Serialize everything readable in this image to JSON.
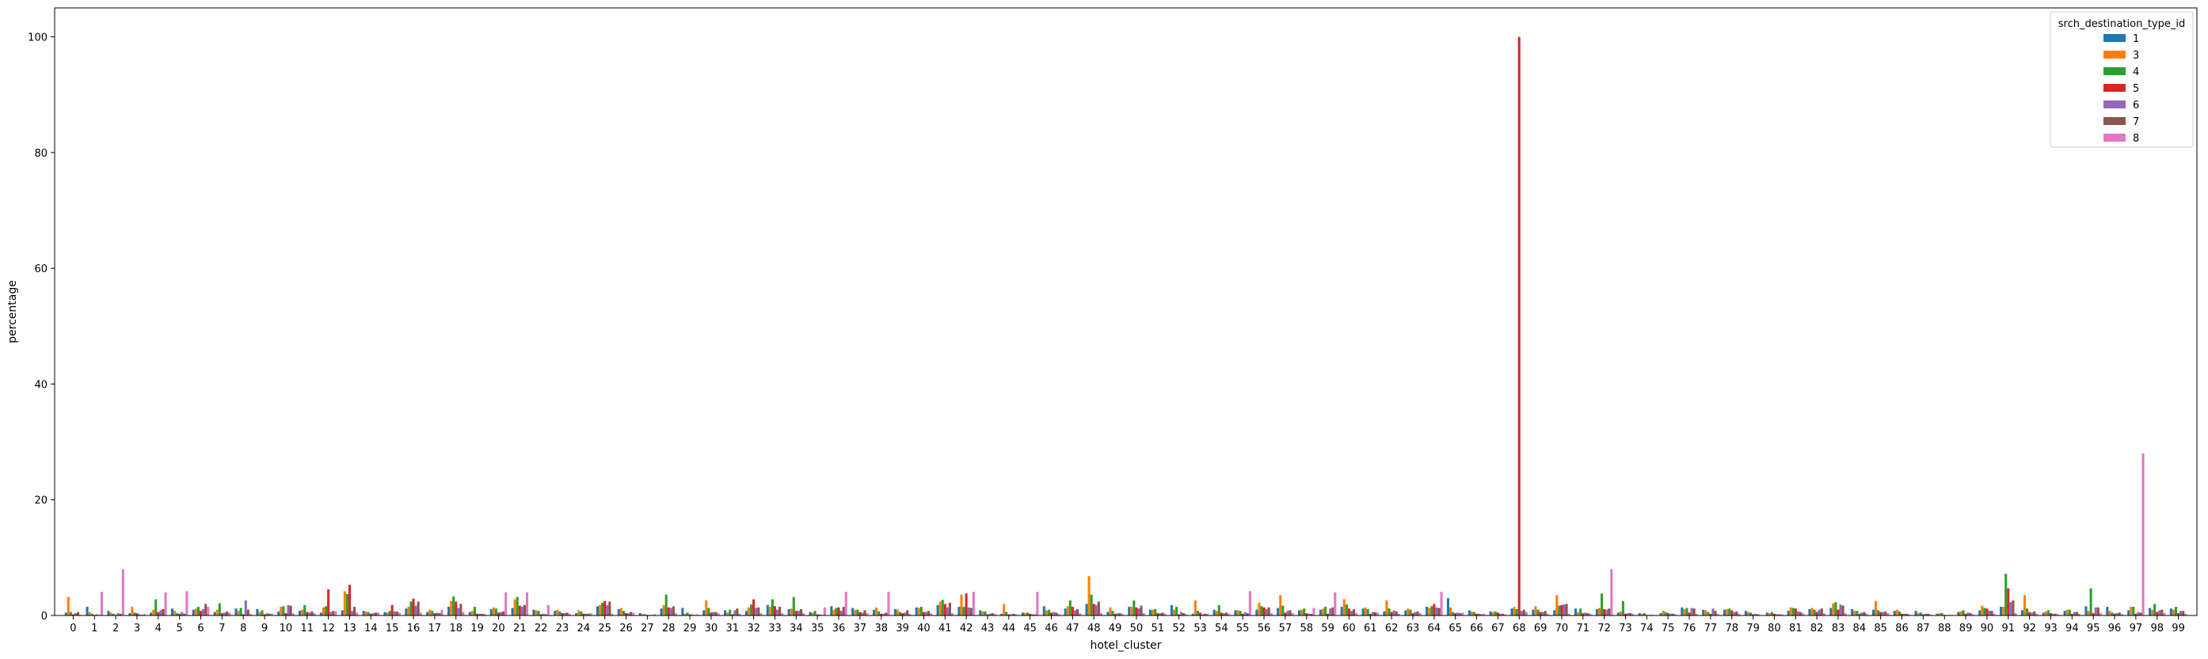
{
  "chart_data": {
    "type": "bar",
    "title": "",
    "xlabel": "hotel_cluster",
    "ylabel": "percentage",
    "ylim": [
      0,
      105
    ],
    "yticks": [
      0,
      20,
      40,
      60,
      80,
      100
    ],
    "grid": false,
    "legend": {
      "title": "srch_destination_type_id",
      "placement": "top-right"
    },
    "categories": [
      "0",
      "1",
      "2",
      "3",
      "4",
      "5",
      "6",
      "7",
      "8",
      "9",
      "10",
      "11",
      "12",
      "13",
      "14",
      "15",
      "16",
      "17",
      "18",
      "19",
      "20",
      "21",
      "22",
      "23",
      "24",
      "25",
      "26",
      "27",
      "28",
      "29",
      "30",
      "31",
      "32",
      "33",
      "34",
      "35",
      "36",
      "37",
      "38",
      "39",
      "40",
      "41",
      "42",
      "43",
      "44",
      "45",
      "46",
      "47",
      "48",
      "49",
      "50",
      "51",
      "52",
      "53",
      "54",
      "55",
      "56",
      "57",
      "58",
      "59",
      "60",
      "61",
      "62",
      "63",
      "64",
      "65",
      "66",
      "67",
      "68",
      "69",
      "70",
      "71",
      "72",
      "73",
      "74",
      "75",
      "76",
      "77",
      "78",
      "79",
      "80",
      "81",
      "82",
      "83",
      "84",
      "85",
      "86",
      "87",
      "88",
      "89",
      "90",
      "91",
      "92",
      "93",
      "94",
      "95",
      "96",
      "97",
      "98",
      "99"
    ],
    "series": [
      {
        "name": "1",
        "color": "#1f77b4",
        "values": [
          0.5,
          1.5,
          0.8,
          0.4,
          0.5,
          1.2,
          1.0,
          0.6,
          1.2,
          1.1,
          0.7,
          0.8,
          0.5,
          0.9,
          0.8,
          0.6,
          1.2,
          0.6,
          1.5,
          0.6,
          1.1,
          1.3,
          1.0,
          0.8,
          0.4,
          1.6,
          1.1,
          0.4,
          1.2,
          1.3,
          0.9,
          0.9,
          0.8,
          1.8,
          1.1,
          0.6,
          1.6,
          1.3,
          1.0,
          1.1,
          1.4,
          1.8,
          1.5,
          0.9,
          0.3,
          0.5,
          1.6,
          1.2,
          2.0,
          0.6,
          1.5,
          1.0,
          1.8,
          0.3,
          1.0,
          0.9,
          1.0,
          1.3,
          0.9,
          1.0,
          1.5,
          1.2,
          0.7,
          0.9,
          1.5,
          3.0,
          0.9,
          0.7,
          1.2,
          1.0,
          0.9,
          1.2,
          1.1,
          0.5,
          0.4,
          0.4,
          1.4,
          1.0,
          1.0,
          0.8,
          0.5,
          0.8,
          1.1,
          1.3,
          1.1,
          1.0,
          0.8,
          0.8,
          0.3,
          0.6,
          0.9,
          1.5,
          0.9,
          0.5,
          0.8,
          1.6,
          1.5,
          0.9,
          1.3,
          1.2
        ]
      },
      {
        "name": "3",
        "color": "#ff7f0e",
        "values": [
          3.2,
          0.6,
          0.5,
          1.5,
          1.0,
          0.8,
          1.2,
          1.0,
          0.8,
          0.6,
          1.5,
          1.0,
          1.4,
          4.2,
          0.7,
          0.5,
          1.5,
          1.0,
          2.5,
          0.8,
          1.4,
          2.8,
          0.9,
          1.0,
          0.9,
          1.8,
          1.3,
          0.3,
          1.8,
          0.3,
          2.6,
          0.5,
          1.4,
          1.5,
          1.2,
          0.5,
          1.0,
          1.0,
          1.4,
          1.0,
          1.3,
          2.4,
          3.6,
          0.7,
          2.0,
          0.4,
          0.9,
          1.6,
          6.8,
          1.4,
          1.5,
          1.0,
          1.0,
          2.6,
          0.8,
          0.9,
          2.2,
          3.5,
          1.0,
          1.2,
          2.8,
          1.4,
          2.6,
          1.2,
          1.3,
          1.4,
          0.7,
          0.6,
          1.5,
          1.6,
          3.5,
          0.6,
          1.3,
          0.7,
          0.3,
          0.8,
          1.1,
          0.9,
          1.1,
          0.6,
          0.4,
          1.4,
          1.3,
          2.1,
          0.8,
          2.5,
          1.0,
          0.4,
          0.4,
          0.7,
          1.7,
          1.5,
          3.5,
          0.7,
          1.0,
          0.8,
          0.8,
          1.5,
          1.0,
          1.0
        ]
      },
      {
        "name": "4",
        "color": "#2ca02c",
        "values": [
          0.6,
          0.3,
          0.3,
          0.5,
          2.8,
          0.4,
          1.5,
          2.1,
          1.3,
          0.9,
          1.6,
          1.8,
          1.6,
          3.7,
          0.6,
          0.8,
          2.4,
          0.8,
          3.3,
          1.5,
          1.2,
          3.2,
          0.8,
          0.7,
          0.7,
          2.2,
          0.8,
          0.2,
          3.6,
          0.5,
          1.3,
          1.0,
          1.9,
          2.8,
          3.2,
          0.8,
          1.3,
          1.0,
          0.7,
          0.6,
          1.5,
          2.7,
          1.5,
          0.7,
          0.6,
          0.5,
          1.0,
          2.6,
          3.6,
          0.8,
          2.6,
          1.1,
          1.5,
          0.8,
          1.8,
          0.8,
          1.6,
          1.7,
          1.2,
          1.5,
          1.9,
          1.1,
          1.2,
          1.0,
          1.6,
          0.6,
          0.6,
          0.7,
          1.1,
          1.0,
          1.7,
          1.2,
          3.8,
          2.5,
          0.4,
          0.6,
          1.3,
          0.6,
          1.2,
          0.5,
          0.6,
          1.3,
          1.0,
          2.3,
          0.8,
          0.9,
          0.7,
          0.5,
          0.4,
          0.9,
          1.3,
          7.2,
          1.2,
          0.9,
          1.0,
          4.7,
          0.5,
          1.5,
          2.0,
          1.5
        ]
      },
      {
        "name": "5",
        "color": "#d62728",
        "values": [
          0.2,
          0.1,
          0.1,
          0.4,
          0.6,
          0.3,
          0.8,
          0.4,
          0.2,
          0.2,
          0.4,
          0.6,
          4.5,
          5.3,
          0.3,
          1.8,
          2.9,
          0.4,
          2.4,
          0.3,
          0.5,
          1.7,
          0.2,
          0.4,
          0.3,
          2.5,
          0.4,
          0.1,
          1.4,
          0.2,
          0.5,
          0.2,
          2.8,
          1.6,
          0.8,
          0.2,
          1.4,
          0.6,
          0.3,
          0.4,
          0.6,
          2.0,
          3.8,
          0.2,
          0.2,
          0.3,
          0.5,
          1.5,
          2.0,
          0.3,
          1.4,
          0.4,
          0.2,
          0.5,
          0.5,
          0.3,
          1.4,
          0.5,
          0.4,
          0.3,
          1.2,
          0.3,
          0.6,
          0.4,
          2.0,
          0.4,
          0.3,
          0.5,
          100.0,
          0.6,
          1.8,
          0.4,
          1.1,
          0.3,
          0.1,
          0.4,
          0.5,
          0.3,
          0.9,
          0.2,
          0.3,
          1.2,
          0.6,
          1.0,
          0.3,
          0.6,
          0.3,
          0.2,
          0.1,
          0.3,
          1.2,
          4.7,
          0.6,
          0.4,
          0.3,
          0.4,
          0.3,
          0.3,
          0.6,
          0.4
        ]
      },
      {
        "name": "6",
        "color": "#9467bd",
        "values": [
          0.4,
          0.2,
          0.4,
          0.2,
          0.9,
          0.6,
          1.1,
          0.5,
          2.6,
          0.4,
          1.8,
          0.5,
          0.6,
          0.8,
          0.4,
          0.7,
          1.7,
          0.5,
          1.3,
          0.3,
          0.6,
          1.5,
          0.3,
          0.4,
          0.3,
          1.8,
          0.4,
          0.1,
          1.3,
          0.2,
          0.6,
          0.9,
          1.3,
          1.0,
          0.8,
          0.2,
          0.8,
          0.5,
          0.3,
          0.5,
          0.6,
          1.4,
          1.4,
          0.3,
          0.2,
          0.2,
          0.6,
          0.9,
          1.8,
          0.4,
          1.2,
          0.4,
          0.6,
          0.2,
          0.4,
          0.6,
          1.1,
          0.8,
          0.3,
          1.2,
          0.8,
          0.6,
          0.9,
          0.6,
          1.4,
          0.5,
          0.3,
          0.3,
          0.8,
          0.6,
          1.9,
          0.5,
          1.0,
          0.4,
          0.1,
          0.3,
          1.3,
          1.2,
          0.6,
          0.3,
          0.2,
          0.7,
          1.0,
          1.9,
          0.5,
          0.6,
          0.3,
          0.3,
          0.1,
          0.5,
          0.8,
          2.3,
          0.5,
          0.3,
          0.6,
          1.4,
          0.4,
          0.6,
          0.9,
          0.8
        ]
      },
      {
        "name": "7",
        "color": "#8c564b",
        "values": [
          0.6,
          0.1,
          0.3,
          0.1,
          1.1,
          0.3,
          2.0,
          0.7,
          1.0,
          0.3,
          1.7,
          0.7,
          0.8,
          1.5,
          0.5,
          0.7,
          2.4,
          0.4,
          2.0,
          0.3,
          0.7,
          1.8,
          0.2,
          0.5,
          0.3,
          2.4,
          0.6,
          0.1,
          1.6,
          0.1,
          0.6,
          1.2,
          1.4,
          1.5,
          1.1,
          0.1,
          1.5,
          0.9,
          0.5,
          0.9,
          0.8,
          2.2,
          1.3,
          0.4,
          0.3,
          0.2,
          0.5,
          1.1,
          2.4,
          0.4,
          1.7,
          0.5,
          0.4,
          0.3,
          0.5,
          0.4,
          1.4,
          0.9,
          0.3,
          1.4,
          1.1,
          0.6,
          0.7,
          0.7,
          1.3,
          0.4,
          0.2,
          0.3,
          1.0,
          0.8,
          2.0,
          0.4,
          1.2,
          0.4,
          0.1,
          0.3,
          1.2,
          0.8,
          0.7,
          0.2,
          0.2,
          0.6,
          1.2,
          1.7,
          0.6,
          0.7,
          0.3,
          0.3,
          0.1,
          0.4,
          0.8,
          2.6,
          0.7,
          0.3,
          0.6,
          1.4,
          0.5,
          0.5,
          1.0,
          0.8
        ]
      },
      {
        "name": "8",
        "color": "#e377c2",
        "values": [
          0.1,
          4.1,
          8.0,
          0.3,
          4.0,
          4.2,
          1.5,
          0.5,
          0.3,
          0.3,
          0.4,
          0.4,
          0.7,
          0.5,
          0.5,
          0.5,
          0.5,
          1.0,
          0.6,
          0.3,
          4.0,
          4.0,
          1.8,
          0.3,
          0.4,
          0.3,
          0.5,
          0.2,
          0.4,
          0.2,
          0.4,
          0.3,
          0.4,
          0.4,
          0.4,
          1.4,
          4.1,
          0.4,
          4.1,
          0.3,
          0.4,
          0.4,
          4.1,
          0.3,
          0.2,
          4.1,
          0.3,
          0.4,
          0.4,
          0.3,
          0.4,
          0.3,
          0.2,
          0.3,
          0.3,
          4.2,
          0.4,
          0.4,
          1.3,
          4.0,
          0.4,
          0.5,
          0.3,
          0.4,
          4.1,
          0.5,
          0.3,
          0.2,
          0.6,
          0.3,
          0.3,
          0.3,
          8.0,
          0.3,
          0.1,
          0.2,
          0.3,
          0.3,
          0.3,
          0.1,
          0.2,
          0.4,
          0.4,
          0.4,
          0.3,
          0.4,
          0.2,
          0.2,
          0.1,
          0.2,
          0.3,
          0.4,
          0.3,
          0.2,
          0.3,
          0.4,
          0.3,
          28.0,
          0.4,
          0.3
        ]
      }
    ]
  }
}
